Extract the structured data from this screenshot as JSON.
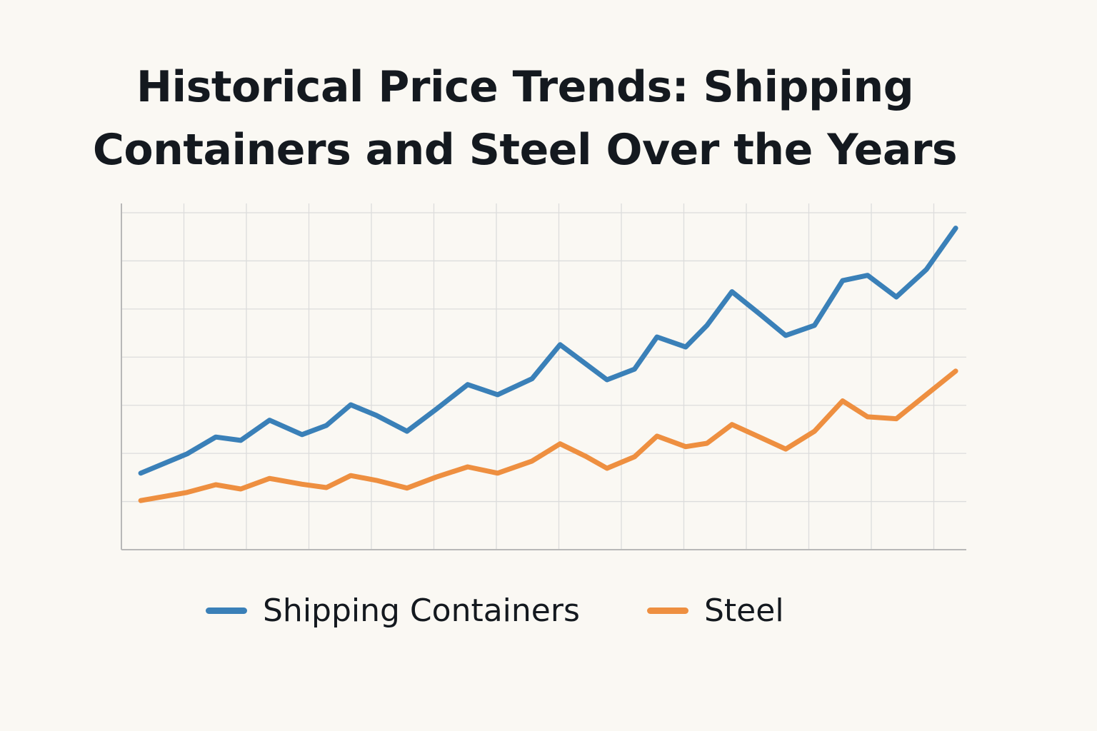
{
  "chart_data": {
    "type": "line",
    "title": "Historical Price Trends: Shipping Containers and Steel Over the Years",
    "xlabel": "",
    "ylabel": "",
    "xlim": [
      0,
      13.52
    ],
    "ylim": [
      0,
      7
    ],
    "grid": true,
    "legend_position": "bottom",
    "x": [
      0.31,
      1.05,
      1.51,
      1.91,
      2.37,
      2.89,
      3.28,
      3.67,
      4.08,
      4.57,
      5.04,
      5.54,
      6.02,
      6.57,
      7.02,
      7.43,
      7.77,
      8.21,
      8.57,
      9.03,
      9.37,
      9.77,
      10.21,
      10.63,
      11.09,
      11.54,
      11.94,
      12.4,
      12.88,
      13.35
    ],
    "series": [
      {
        "name": "Shipping Containers",
        "color": "#3a80b8",
        "values": [
          1.59,
          1.99,
          2.34,
          2.27,
          2.69,
          2.39,
          2.58,
          3.01,
          2.79,
          2.46,
          2.92,
          3.43,
          3.22,
          3.55,
          4.26,
          3.86,
          3.53,
          3.75,
          4.42,
          4.21,
          4.66,
          5.36,
          4.9,
          4.45,
          4.66,
          5.59,
          5.7,
          5.25,
          5.82,
          6.68
        ]
      },
      {
        "name": "Steel",
        "color": "#ee8f40",
        "values": [
          1.02,
          1.19,
          1.35,
          1.26,
          1.48,
          1.36,
          1.29,
          1.54,
          1.44,
          1.28,
          1.51,
          1.72,
          1.59,
          1.84,
          2.2,
          1.94,
          1.69,
          1.93,
          2.36,
          2.14,
          2.21,
          2.6,
          2.34,
          2.09,
          2.46,
          3.09,
          2.76,
          2.72,
          3.22,
          3.71
        ]
      }
    ]
  }
}
